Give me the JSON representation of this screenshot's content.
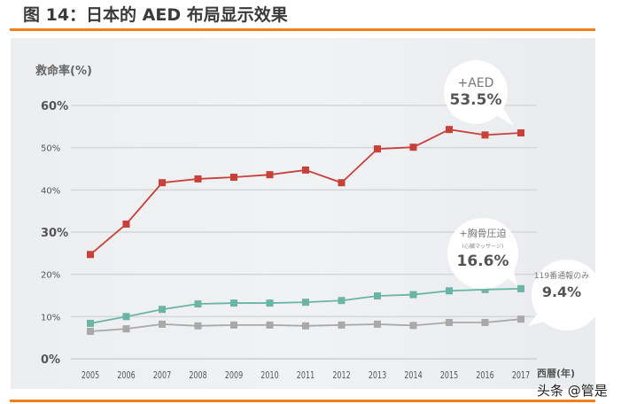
{
  "title": "图 14：日本的 AED 布局显示效果",
  "watermark": "头条 @管是",
  "chart_data": {
    "type": "line",
    "ylabel": "救命率(%)",
    "xlabel": "西暦(年)",
    "ylim": [
      0,
      60
    ],
    "yticks": [
      "0%",
      "10%",
      "20%",
      "30%",
      "40%",
      "50%",
      "60%"
    ],
    "grid": true,
    "categories": [
      "2005",
      "2006",
      "2007",
      "2008",
      "2009",
      "2010",
      "2011",
      "2012",
      "2013",
      "2014",
      "2015",
      "2016",
      "2017"
    ],
    "series": [
      {
        "name": "+AED",
        "color": "#c9403a",
        "values": [
          24.7,
          31.9,
          41.7,
          42.6,
          43.0,
          43.6,
          44.7,
          41.7,
          49.7,
          50.1,
          54.3,
          53.0,
          53.5
        ],
        "callout": {
          "line1": "+AED",
          "value": "53.5%"
        }
      },
      {
        "name": "+胸骨圧迫",
        "color": "#6bb5a6",
        "values": [
          8.4,
          10.0,
          11.7,
          13.0,
          13.2,
          13.2,
          13.4,
          13.8,
          14.9,
          15.2,
          16.1,
          16.4,
          16.6
        ],
        "callout": {
          "line1": "+胸骨圧迫",
          "line2": "(心臓マッサージ)",
          "value": "16.6%"
        }
      },
      {
        "name": "119番通報のみ",
        "color": "#a9a9a9",
        "values": [
          6.5,
          7.1,
          8.2,
          7.8,
          8.0,
          8.0,
          7.8,
          8.0,
          8.2,
          7.9,
          8.6,
          8.6,
          9.4
        ],
        "callout": {
          "line1": "119番通報のみ",
          "value": "9.4%"
        }
      }
    ]
  }
}
